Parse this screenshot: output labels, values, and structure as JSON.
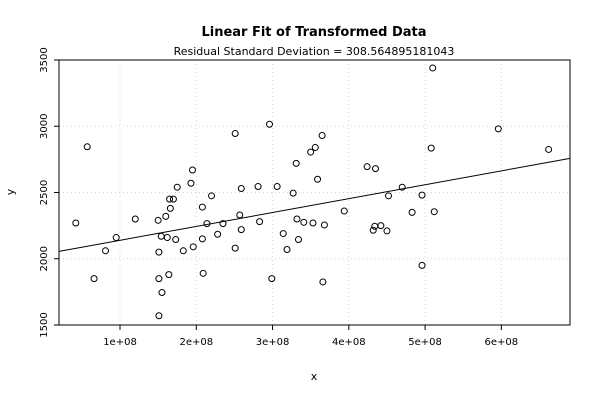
{
  "chart_data": {
    "type": "scatter",
    "title": "Linear Fit of Transformed Data",
    "subtitle": "Residual Standard Deviation =  308.564895181043",
    "xlabel": "x",
    "ylabel": "y",
    "xlim": [
      20000000,
      690000000
    ],
    "ylim": [
      1500,
      3500
    ],
    "x_ticks": [
      100000000,
      200000000,
      300000000,
      400000000,
      500000000,
      600000000
    ],
    "x_tick_labels": [
      "1e+08",
      "2e+08",
      "3e+08",
      "4e+08",
      "5e+08",
      "6e+08"
    ],
    "y_ticks": [
      1500,
      2000,
      2500,
      3000,
      3500
    ],
    "y_tick_labels": [
      "1500",
      "2000",
      "2500",
      "3000",
      "3500"
    ],
    "grid": true,
    "legend": "none",
    "fit_line": {
      "intercept": 2034.6,
      "slope": 1.0481e-06
    },
    "points": [
      {
        "x": 42000000,
        "y": 2270
      },
      {
        "x": 57000000,
        "y": 2845
      },
      {
        "x": 66000000,
        "y": 1850
      },
      {
        "x": 81000000,
        "y": 2060
      },
      {
        "x": 95000000,
        "y": 2160
      },
      {
        "x": 120000000,
        "y": 2300
      },
      {
        "x": 150000000,
        "y": 2290
      },
      {
        "x": 151000000,
        "y": 2050
      },
      {
        "x": 151000000,
        "y": 1850
      },
      {
        "x": 151000000,
        "y": 1570
      },
      {
        "x": 154000000,
        "y": 2170
      },
      {
        "x": 155000000,
        "y": 1745
      },
      {
        "x": 160000000,
        "y": 2320
      },
      {
        "x": 162000000,
        "y": 2160
      },
      {
        "x": 164000000,
        "y": 1880
      },
      {
        "x": 165000000,
        "y": 2450
      },
      {
        "x": 166000000,
        "y": 2380
      },
      {
        "x": 170000000,
        "y": 2450
      },
      {
        "x": 173000000,
        "y": 2145
      },
      {
        "x": 175000000,
        "y": 2540
      },
      {
        "x": 183000000,
        "y": 2060
      },
      {
        "x": 193000000,
        "y": 2570
      },
      {
        "x": 195000000,
        "y": 2670
      },
      {
        "x": 196000000,
        "y": 2090
      },
      {
        "x": 208000000,
        "y": 2390
      },
      {
        "x": 208000000,
        "y": 2150
      },
      {
        "x": 209000000,
        "y": 1890
      },
      {
        "x": 214000000,
        "y": 2265
      },
      {
        "x": 220000000,
        "y": 2475
      },
      {
        "x": 228000000,
        "y": 2185
      },
      {
        "x": 235000000,
        "y": 2265
      },
      {
        "x": 251000000,
        "y": 2945
      },
      {
        "x": 251000000,
        "y": 2080
      },
      {
        "x": 257000000,
        "y": 2330
      },
      {
        "x": 259000000,
        "y": 2220
      },
      {
        "x": 259000000,
        "y": 2530
      },
      {
        "x": 281000000,
        "y": 2545
      },
      {
        "x": 283000000,
        "y": 2280
      },
      {
        "x": 296000000,
        "y": 3015
      },
      {
        "x": 299000000,
        "y": 1850
      },
      {
        "x": 306000000,
        "y": 2545
      },
      {
        "x": 314000000,
        "y": 2190
      },
      {
        "x": 319000000,
        "y": 2070
      },
      {
        "x": 327000000,
        "y": 2495
      },
      {
        "x": 331000000,
        "y": 2720
      },
      {
        "x": 332000000,
        "y": 2300
      },
      {
        "x": 334000000,
        "y": 2145
      },
      {
        "x": 341000000,
        "y": 2275
      },
      {
        "x": 350000000,
        "y": 2805
      },
      {
        "x": 353000000,
        "y": 2270
      },
      {
        "x": 356000000,
        "y": 2840
      },
      {
        "x": 359000000,
        "y": 2600
      },
      {
        "x": 365000000,
        "y": 2930
      },
      {
        "x": 366000000,
        "y": 1825
      },
      {
        "x": 368000000,
        "y": 2255
      },
      {
        "x": 394000000,
        "y": 2360
      },
      {
        "x": 424000000,
        "y": 2695
      },
      {
        "x": 432000000,
        "y": 2215
      },
      {
        "x": 434000000,
        "y": 2245
      },
      {
        "x": 435000000,
        "y": 2680
      },
      {
        "x": 442000000,
        "y": 2250
      },
      {
        "x": 450000000,
        "y": 2210
      },
      {
        "x": 452000000,
        "y": 2475
      },
      {
        "x": 470000000,
        "y": 2540
      },
      {
        "x": 483000000,
        "y": 2350
      },
      {
        "x": 496000000,
        "y": 2480
      },
      {
        "x": 496000000,
        "y": 1950
      },
      {
        "x": 508000000,
        "y": 2835
      },
      {
        "x": 510000000,
        "y": 3440
      },
      {
        "x": 512000000,
        "y": 2355
      },
      {
        "x": 596000000,
        "y": 2980
      },
      {
        "x": 662000000,
        "y": 2825
      }
    ]
  }
}
